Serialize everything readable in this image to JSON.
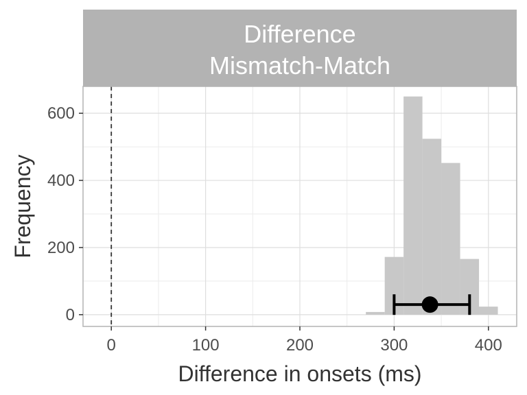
{
  "chart_data": {
    "type": "bar",
    "title_lines": [
      "Difference",
      "Mismatch-Match"
    ],
    "xlabel": "Difference in onsets (ms)",
    "ylabel": "Frequency",
    "xlim": [
      -30,
      430
    ],
    "ylim": [
      -35,
      680
    ],
    "x_ticks": [
      0,
      100,
      200,
      300,
      400
    ],
    "y_ticks": [
      0,
      200,
      400,
      600
    ],
    "grid": true,
    "histogram": {
      "bin_width": 20,
      "bins": [
        {
          "x": 280,
          "count": 8
        },
        {
          "x": 300,
          "count": 172
        },
        {
          "x": 320,
          "count": 650
        },
        {
          "x": 340,
          "count": 524
        },
        {
          "x": 360,
          "count": 452
        },
        {
          "x": 380,
          "count": 166
        },
        {
          "x": 400,
          "count": 24
        }
      ],
      "color": "#c8c8c8"
    },
    "reference_line": {
      "x": 0,
      "style": "dashed",
      "color": "#333333"
    },
    "point_estimate": {
      "x": 338,
      "y": 30,
      "lower": 300,
      "upper": 380,
      "color": "#000000"
    },
    "strip_color": "#b3b3b3"
  }
}
